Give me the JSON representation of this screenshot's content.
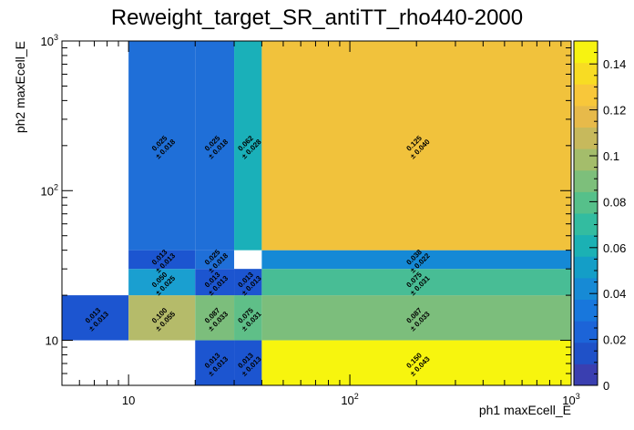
{
  "chart_data": {
    "type": "heatmap",
    "title": "Reweight_target_SR_antiTT_rho440-2000",
    "xlabel": "ph1 maxEcell_E",
    "ylabel": "ph2 maxEcell_E",
    "x_scale": "log",
    "y_scale": "log",
    "xlim": [
      5,
      1000
    ],
    "ylim": [
      5,
      1000
    ],
    "x_tick_labels": [
      "10",
      "10^2",
      "10^3"
    ],
    "y_tick_labels": [
      "10",
      "10^2",
      "10^3"
    ],
    "colorbar": {
      "range": [
        0,
        0.15
      ],
      "tick_labels": [
        "0",
        "0.02",
        "0.04",
        "0.06",
        "0.08",
        "0.1",
        "0.12",
        "0.14"
      ],
      "colors": [
        "#3a3fb0",
        "#1f51c8",
        "#1c64d8",
        "#1877dc",
        "#178ad5",
        "#149ec7",
        "#1bb1b4",
        "#33bca0",
        "#56c08a",
        "#7dbf7b",
        "#a4bd6b",
        "#c7b95c",
        "#e7ba4a",
        "#f8c73a",
        "#f8dc23",
        "#f7f311"
      ]
    },
    "cells": [
      {
        "x": [
          5,
          10
        ],
        "y": [
          10,
          20
        ],
        "value": 0.013,
        "error": 0.013,
        "label": "0.013",
        "error_label": "± 0.013",
        "color": "#1c55d0"
      },
      {
        "x": [
          10,
          20
        ],
        "y": [
          10,
          20
        ],
        "value": 0.1,
        "error": 0.055,
        "label": "0.100",
        "error_label": "± 0.055",
        "color": "#b5bb6a"
      },
      {
        "x": [
          20,
          30
        ],
        "y": [
          10,
          20
        ],
        "value": 0.087,
        "error": 0.033,
        "label": "0.087",
        "error_label": "± 0.033",
        "color": "#7cbe7c"
      },
      {
        "x": [
          30,
          40
        ],
        "y": [
          10,
          20
        ],
        "value": 0.075,
        "error": 0.031,
        "label": "0.075",
        "error_label": "± 0.031",
        "color": "#5fbf88"
      },
      {
        "x": [
          40,
          1000
        ],
        "y": [
          10,
          20
        ],
        "value": 0.087,
        "error": 0.033,
        "label": "0.087",
        "error_label": "± 0.033",
        "color": "#7cbe7c"
      },
      {
        "x": [
          10,
          20
        ],
        "y": [
          20,
          30
        ],
        "value": 0.05,
        "error": 0.025,
        "label": "0.050",
        "error_label": "± 0.025",
        "color": "#1a9fd0"
      },
      {
        "x": [
          20,
          30
        ],
        "y": [
          20,
          30
        ],
        "value": 0.013,
        "error": 0.013,
        "label": "0.013",
        "error_label": "± 0.013",
        "color": "#1c55d0"
      },
      {
        "x": [
          30,
          40
        ],
        "y": [
          20,
          30
        ],
        "value": 0.013,
        "error": 0.013,
        "label": "0.013",
        "error_label": "± 0.013",
        "color": "#1c55d0"
      },
      {
        "x": [
          40,
          1000
        ],
        "y": [
          20,
          30
        ],
        "value": 0.075,
        "error": 0.031,
        "label": "0.075",
        "error_label": "± 0.031",
        "color": "#48bd95"
      },
      {
        "x": [
          10,
          20
        ],
        "y": [
          30,
          40
        ],
        "value": 0.013,
        "error": 0.013,
        "label": "0.013",
        "error_label": "± 0.013",
        "color": "#1c55d0"
      },
      {
        "x": [
          20,
          30
        ],
        "y": [
          30,
          40
        ],
        "value": 0.025,
        "error": 0.018,
        "label": "0.025",
        "error_label": "± 0.018",
        "color": "#1f6fd8"
      },
      {
        "x": [
          40,
          1000
        ],
        "y": [
          30,
          40
        ],
        "value": 0.038,
        "error": 0.022,
        "label": "0.038",
        "error_label": "± 0.022",
        "color": "#1589d6"
      },
      {
        "x": [
          10,
          20
        ],
        "y": [
          40,
          1000
        ],
        "value": 0.025,
        "error": 0.018,
        "label": "0.025",
        "error_label": "± 0.018",
        "color": "#1f6fd8"
      },
      {
        "x": [
          20,
          30
        ],
        "y": [
          40,
          1000
        ],
        "value": 0.025,
        "error": 0.018,
        "label": "0.025",
        "error_label": "± 0.018",
        "color": "#1f6fd8"
      },
      {
        "x": [
          30,
          40
        ],
        "y": [
          40,
          1000
        ],
        "value": 0.062,
        "error": 0.028,
        "label": "0.062",
        "error_label": "± 0.028",
        "color": "#1ab0b9"
      },
      {
        "x": [
          40,
          1000
        ],
        "y": [
          40,
          1000
        ],
        "value": 0.125,
        "error": 0.04,
        "label": "0.125",
        "error_label": "± 0.040",
        "color": "#f1c23c"
      },
      {
        "x": [
          20,
          30
        ],
        "y": [
          5,
          10
        ],
        "value": 0.013,
        "error": 0.013,
        "label": "0.013",
        "error_label": "± 0.013",
        "color": "#1c55d0"
      },
      {
        "x": [
          30,
          40
        ],
        "y": [
          5,
          10
        ],
        "value": 0.013,
        "error": 0.013,
        "label": "0.013",
        "error_label": "± 0.013",
        "color": "#1c55d0"
      },
      {
        "x": [
          40,
          1000
        ],
        "y": [
          5,
          10
        ],
        "value": 0.15,
        "error": 0.043,
        "label": "0.150",
        "error_label": "± 0.043",
        "color": "#f7f50e"
      }
    ]
  }
}
